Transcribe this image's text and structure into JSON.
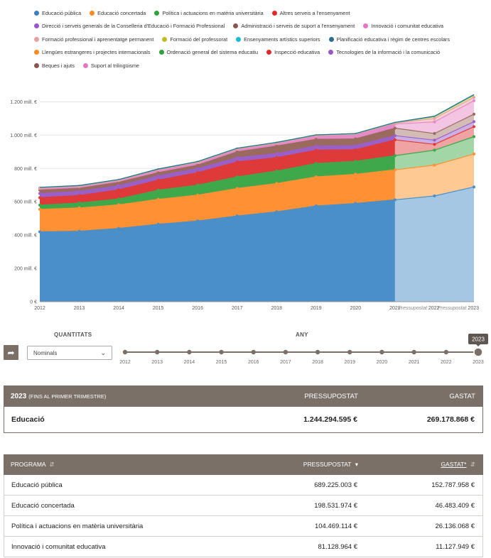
{
  "legend": [
    {
      "label": "Educació pública",
      "color": "#3a7fc0"
    },
    {
      "label": "Educació concertada",
      "color": "#ff8a1f"
    },
    {
      "label": "Política i actuacions en matèria universitària",
      "color": "#2fa23a"
    },
    {
      "label": "Altres serveis a l'ensenyament",
      "color": "#df2a2a"
    },
    {
      "label": "Direcció i serveis generals de la Conselleria d'Educació i Formació Professional",
      "color": "#9a55c8"
    },
    {
      "label": "Administració i serveis de suport a l'ensenyament",
      "color": "#8b564c"
    },
    {
      "label": "Innovació i comunitat educativa",
      "color": "#e377c2"
    },
    {
      "label": "Formació professional i aprenentatge permanent",
      "color": "#e7a0a0"
    },
    {
      "label": "Formació del professorat",
      "color": "#bcbd22"
    },
    {
      "label": "Ensenyaments artístics superiors",
      "color": "#17becf"
    },
    {
      "label": "Planificació educativa i règim de centres escolars",
      "color": "#2c6f8a"
    },
    {
      "label": "Llengües estrangeres i projectes internacionals",
      "color": "#ff8a1f"
    },
    {
      "label": "Ordenació general del sistema educatiu",
      "color": "#2fa23a"
    },
    {
      "label": "Inspecció educativa",
      "color": "#df2a2a"
    },
    {
      "label": "Tecnologies de la informació i la comunicació",
      "color": "#9a55c8"
    },
    {
      "label": "Beques i ajuts",
      "color": "#8b564c"
    },
    {
      "label": "Suport al trilingüisme",
      "color": "#e377c2"
    }
  ],
  "chart_data": {
    "type": "area",
    "stacked": true,
    "x": [
      "2012",
      "2013",
      "2014",
      "2015",
      "2016",
      "2017",
      "2018",
      "2019",
      "2020",
      "2021",
      "2022",
      "2023"
    ],
    "x_tick_labels": [
      "2012",
      "2013",
      "2014",
      "2015",
      "2016",
      "2017",
      "2018",
      "2019",
      "2020",
      "2021",
      "Pressupostat 2022",
      "Pressupostat 2023"
    ],
    "projected_from_index": 9,
    "y_ticks": [
      "0 €",
      "200 mill. €",
      "400 mill. €",
      "600 mill. €",
      "800 mill. €",
      "1.000 mill. €",
      "1.200 mill. €"
    ],
    "ylim": [
      0,
      1300
    ],
    "series": [
      {
        "name": "Educació pública",
        "color": "#4a8fc7",
        "color_light": "#a6c7e3",
        "values": [
          420,
          423,
          440,
          465,
          485,
          515,
          540,
          575,
          590,
          612,
          635,
          689
        ]
      },
      {
        "name": "Educació concertada",
        "color": "#ff9033",
        "color_light": "#ffc994",
        "values": [
          135,
          140,
          142,
          150,
          155,
          165,
          170,
          175,
          175,
          180,
          185,
          198
        ]
      },
      {
        "name": "Política i actuacions en matèria universitària",
        "color": "#3fa84a",
        "color_light": "#a3d6a6",
        "values": [
          25,
          30,
          35,
          55,
          60,
          70,
          75,
          80,
          78,
          85,
          90,
          104
        ]
      },
      {
        "name": "Altres serveis a l'ensenyament",
        "color": "#df3a3a",
        "color_light": "#f0a3a3",
        "values": [
          45,
          45,
          55,
          60,
          75,
          90,
          80,
          80,
          70,
          95,
          35,
          60
        ]
      },
      {
        "name": "Direcció i serveis generals de la Conselleria d'Educació i Formació Professional",
        "color": "#9a60c8",
        "color_light": "#cdb0e3",
        "values": [
          25,
          25,
          25,
          25,
          25,
          25,
          25,
          25,
          25,
          25,
          25,
          30
        ]
      },
      {
        "name": "Administració i serveis de suport a l'ensenyament",
        "color": "#9a6a5e",
        "color_light": "#d3bcb6",
        "values": [
          20,
          18,
          20,
          20,
          20,
          35,
          45,
          40,
          40,
          45,
          40,
          45
        ]
      },
      {
        "name": "Innovació i comunitat educativa",
        "color": "#e58ac8",
        "color_light": "#f3c5e3",
        "values": [
          10,
          10,
          10,
          15,
          15,
          15,
          15,
          20,
          25,
          25,
          70,
          81
        ]
      },
      {
        "name": "Formació professional i aprenentatge permanent",
        "color": "#e7a0a0",
        "color_light": "#f4d2d2",
        "values": [
          3,
          3,
          3,
          3,
          3,
          3,
          3,
          3,
          3,
          5,
          20,
          20
        ]
      },
      {
        "name": "Formació del professorat",
        "color": "#c8c93a",
        "color_light": "#e6e6a3",
        "values": [
          2,
          2,
          2,
          2,
          2,
          2,
          2,
          2,
          2,
          3,
          10,
          12
        ]
      },
      {
        "name": "Ensenyaments artístics superiors",
        "color": "#17becf",
        "color_light": "#9adfe7",
        "values": [
          1,
          1,
          1,
          1,
          1,
          1,
          1,
          1,
          1,
          1,
          2,
          3
        ]
      },
      {
        "name": "Planificació educativa i règim de centres escolars",
        "color": "#2c6f8a",
        "color_light": "#9ab9c6",
        "values": [
          1,
          1,
          1,
          1,
          1,
          1,
          1,
          1,
          1,
          1,
          2,
          2
        ]
      }
    ]
  },
  "controls": {
    "share_icon": "share-arrow-icon",
    "quantitats_label": "QUANTITATS",
    "quantitats_value": "Nominals",
    "any_label": "ANY",
    "years": [
      "2012",
      "2013",
      "2014",
      "2015",
      "2016",
      "2017",
      "2018",
      "2019",
      "2020",
      "2021",
      "2022",
      "2023"
    ],
    "selected_year": "2023"
  },
  "summary": {
    "year": "2023",
    "subtitle": "(FINS AL PRIMER TRIMESTRE)",
    "col_budget": "PRESSUPOSTAT",
    "col_spent": "GASTAT",
    "name": "Educació",
    "budget": "1.244.294.595 €",
    "spent": "269.178.868 €"
  },
  "programs": {
    "col_program": "PROGRAMA",
    "col_budget": "PRESSUPOSTAT",
    "col_spent": "GASTAT*",
    "rows": [
      {
        "name": "Educació pública",
        "budget": "689.225.003 €",
        "spent": "152.787.958 €"
      },
      {
        "name": "Educació concertada",
        "budget": "198.531.974 €",
        "spent": "46.483.409 €"
      },
      {
        "name": "Política i actuacions en matèria universitària",
        "budget": "104.469.114 €",
        "spent": "26.136.068 €"
      },
      {
        "name": "Innovació i comunitat educativa",
        "budget": "81.128.964 €",
        "spent": "11.127.949 €"
      }
    ]
  }
}
